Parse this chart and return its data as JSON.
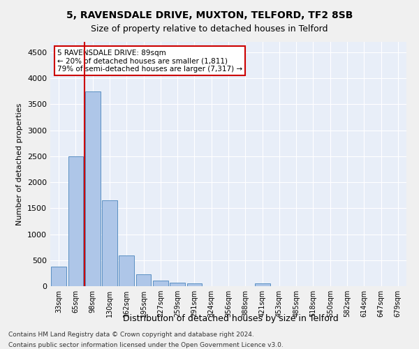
{
  "title1": "5, RAVENSDALE DRIVE, MUXTON, TELFORD, TF2 8SB",
  "title2": "Size of property relative to detached houses in Telford",
  "xlabel": "Distribution of detached houses by size in Telford",
  "ylabel": "Number of detached properties",
  "categories": [
    "33sqm",
    "65sqm",
    "98sqm",
    "130sqm",
    "162sqm",
    "195sqm",
    "227sqm",
    "259sqm",
    "291sqm",
    "324sqm",
    "356sqm",
    "388sqm",
    "421sqm",
    "453sqm",
    "485sqm",
    "518sqm",
    "550sqm",
    "582sqm",
    "614sqm",
    "647sqm",
    "679sqm"
  ],
  "values": [
    370,
    2500,
    3750,
    1650,
    590,
    230,
    110,
    70,
    50,
    0,
    0,
    0,
    55,
    0,
    0,
    0,
    0,
    0,
    0,
    0,
    0
  ],
  "bar_color": "#aec6e8",
  "bar_edge_color": "#5a8fc2",
  "vline_x": 2,
  "vline_color": "#cc0000",
  "annotation_text": "5 RAVENSDALE DRIVE: 89sqm\n← 20% of detached houses are smaller (1,811)\n79% of semi-detached houses are larger (7,317) →",
  "annotation_box_color": "#ffffff",
  "annotation_box_edge_color": "#cc0000",
  "ylim": [
    0,
    4700
  ],
  "yticks": [
    0,
    500,
    1000,
    1500,
    2000,
    2500,
    3000,
    3500,
    4000,
    4500
  ],
  "background_color": "#e8eef8",
  "grid_color": "#ffffff",
  "footer1": "Contains HM Land Registry data © Crown copyright and database right 2024.",
  "footer2": "Contains public sector information licensed under the Open Government Licence v3.0."
}
